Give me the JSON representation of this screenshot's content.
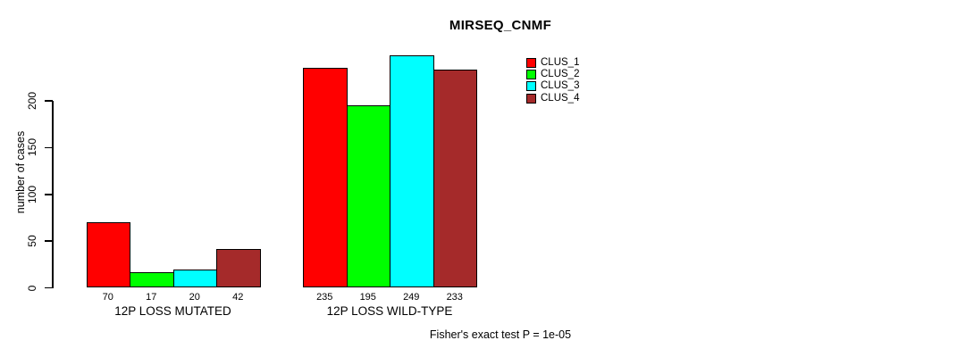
{
  "chart_data": {
    "type": "bar",
    "title": "MIRSEQ_CNMF",
    "ylabel": "number of cases",
    "xlabel": "",
    "ylim": [
      0,
      260
    ],
    "yticks": [
      0,
      50,
      100,
      150,
      200
    ],
    "grid": false,
    "legend_position": "top-right",
    "categories": [
      "12P LOSS MUTATED",
      "12P LOSS WILD-TYPE"
    ],
    "series": [
      {
        "name": "CLUS_1",
        "color": "#FF0000",
        "values": [
          70,
          235
        ]
      },
      {
        "name": "CLUS_2",
        "color": "#00FF00",
        "values": [
          17,
          195
        ]
      },
      {
        "name": "CLUS_3",
        "color": "#00FFFF",
        "values": [
          20,
          249
        ]
      },
      {
        "name": "CLUS_4",
        "color": "#A52A2A",
        "values": [
          42,
          233
        ]
      }
    ],
    "show_bar_values": true,
    "annotation": "Fisher's exact test P = 1e-05"
  },
  "colors": {
    "axis": "#000000",
    "background": "#FFFFFF",
    "text": "#000000"
  }
}
